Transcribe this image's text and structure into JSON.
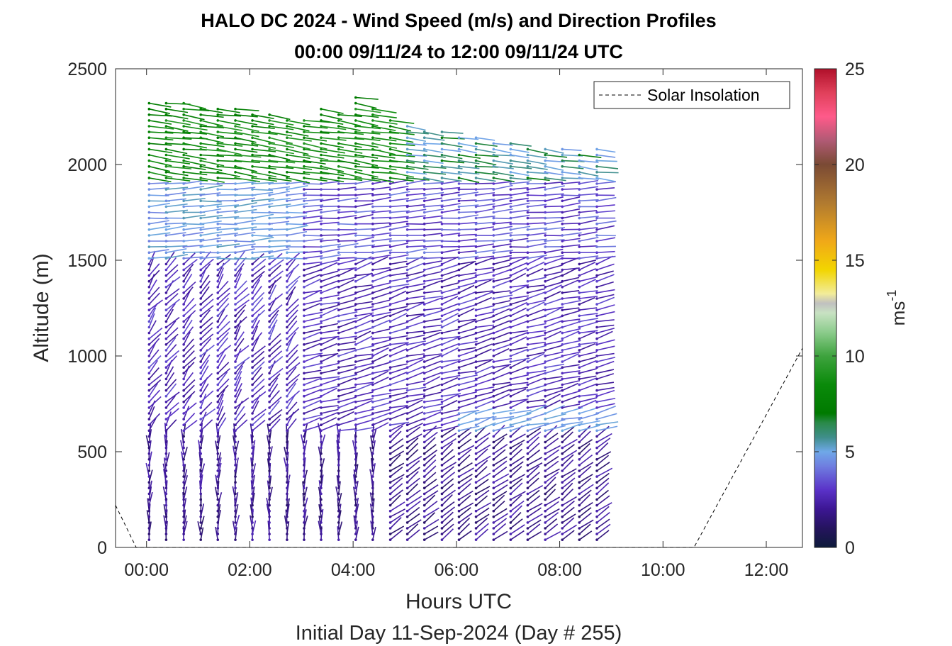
{
  "chart_data": {
    "type": "wind-barb-profile",
    "title": "HALO DC 2024 - Wind Speed (m/s) and Direction Profiles",
    "subtitle": "00:00 09/11/24 to 12:00 09/11/24  UTC",
    "xlabel": "Hours UTC",
    "xlabel2": "Initial Day 11-Sep-2024 (Day # 255)",
    "ylabel": "Altitude (m)",
    "xlim_hours": [
      -0.6,
      12.7
    ],
    "ylim": [
      0,
      2500
    ],
    "x_ticks": [
      {
        "value": 0,
        "label": "00:00"
      },
      {
        "value": 2,
        "label": "02:00"
      },
      {
        "value": 4,
        "label": "04:00"
      },
      {
        "value": 6,
        "label": "06:00"
      },
      {
        "value": 8,
        "label": "08:00"
      },
      {
        "value": 10,
        "label": "10:00"
      },
      {
        "value": 12,
        "label": "12:00"
      }
    ],
    "y_ticks": [
      {
        "value": 0,
        "label": "0"
      },
      {
        "value": 500,
        "label": "500"
      },
      {
        "value": 1000,
        "label": "1000"
      },
      {
        "value": 1500,
        "label": "1500"
      },
      {
        "value": 2000,
        "label": "2000"
      },
      {
        "value": 2500,
        "label": "2500"
      }
    ],
    "legend": {
      "entry": "Solar Insolation",
      "placement": "top-right"
    },
    "colorbar": {
      "label_base": "ms",
      "label_exp": "-1",
      "range": [
        0,
        25
      ],
      "ticks": [
        {
          "value": 0,
          "label": "0"
        },
        {
          "value": 5,
          "label": "5"
        },
        {
          "value": 10,
          "label": "10"
        },
        {
          "value": 15,
          "label": "15"
        },
        {
          "value": 20,
          "label": "20"
        },
        {
          "value": 25,
          "label": "25"
        }
      ]
    },
    "solar_insolation_line": {
      "x_hours": [
        -0.6,
        -0.2,
        10.6,
        12.7
      ],
      "y_m": [
        220,
        0,
        0,
        1040
      ]
    },
    "profile_times_hours": [
      0.05,
      0.38,
      0.72,
      1.05,
      1.38,
      1.72,
      2.05,
      2.38,
      2.72,
      3.05,
      3.38,
      3.72,
      4.05,
      4.38,
      4.72,
      5.05,
      5.38,
      5.72,
      6.05,
      6.38,
      6.72,
      7.05,
      7.38,
      7.72,
      8.05,
      8.38,
      8.72
    ],
    "profile_tops_m": [
      2340,
      2330,
      2320,
      2310,
      2300,
      2290,
      2280,
      2260,
      2240,
      2230,
      2290,
      2280,
      2350,
      2300,
      2250,
      2200,
      2190,
      2170,
      2150,
      2140,
      2130,
      2120,
      2100,
      2090,
      2080,
      2070,
      2080
    ],
    "level_spacing_m": 30,
    "lowest_level_m": 40
  }
}
